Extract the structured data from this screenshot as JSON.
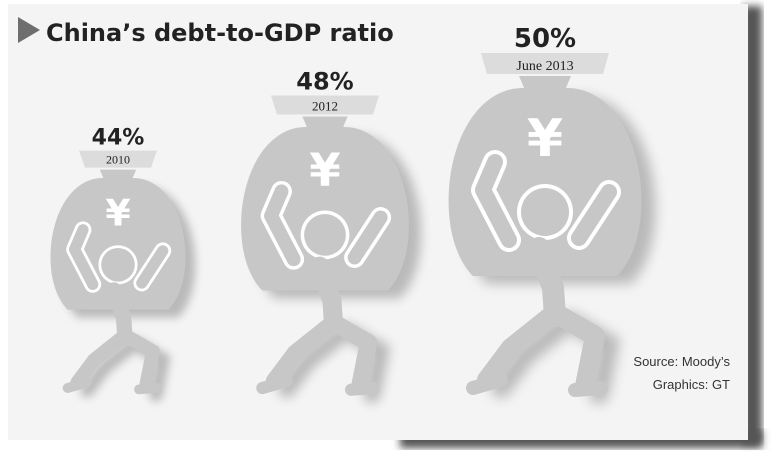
{
  "chart_data": {
    "type": "bar",
    "title": "China’s debt-to-GDP ratio",
    "categories": [
      "2010",
      "2012",
      "June 2013"
    ],
    "values": [
      44,
      48,
      50
    ],
    "value_labels": [
      "44%",
      "48%",
      "50%"
    ],
    "unit": "%",
    "mark_icon": "money-bag-carrier-icon",
    "bag_symbol": "¥",
    "source": "Source: Moody’s",
    "credit": "Graphics: GT"
  },
  "colors": {
    "page": "#ffffff",
    "panel": "#f4f4f4",
    "panel_shadow": "#555555",
    "figure": "#c7c7c7",
    "figure_shadow": "#8a8a8a",
    "band": "#dcdcdc",
    "text": "#222222",
    "symbol": "#ffffff"
  }
}
